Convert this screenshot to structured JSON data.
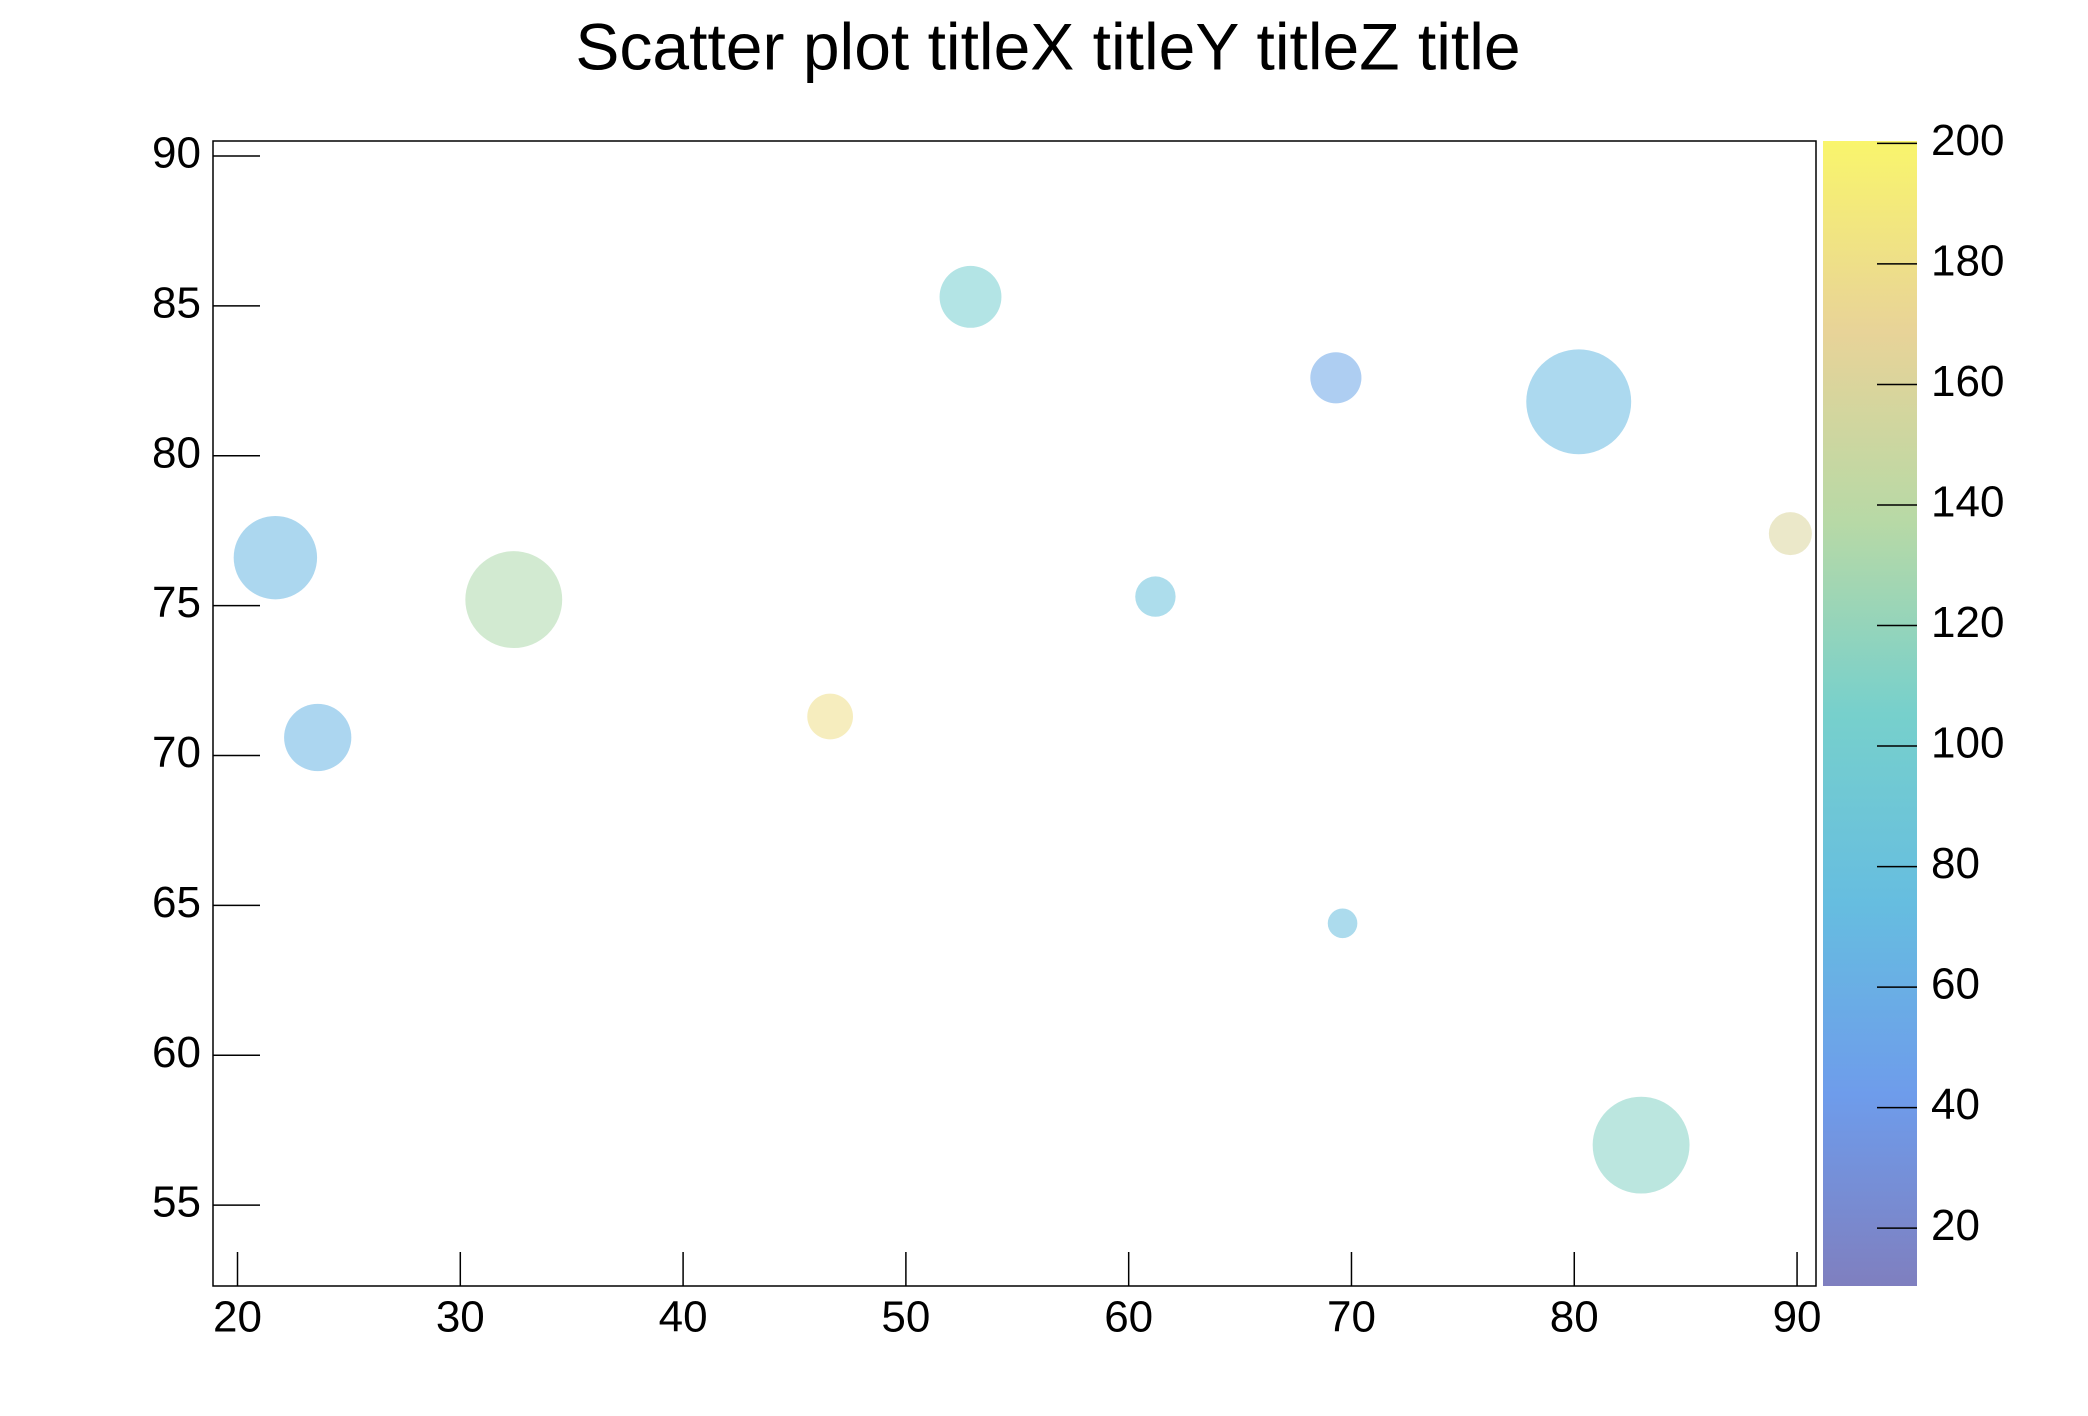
{
  "chart_data": {
    "type": "scatter",
    "title": "Scatter plot titleX titleY titleZ title",
    "x": [
      21.7,
      23.6,
      32.4,
      46.6,
      52.9,
      61.2,
      69.3,
      69.6,
      80.2,
      83.0,
      89.7
    ],
    "y": [
      76.6,
      70.6,
      75.2,
      71.3,
      85.3,
      75.3,
      82.6,
      64.4,
      81.8,
      57.0,
      77.4
    ],
    "z": [
      68,
      66,
      132,
      180,
      100,
      80,
      52,
      76,
      70,
      112,
      160
    ],
    "sizes": [
      31,
      25,
      36,
      17,
      23,
      15,
      19,
      11,
      39,
      36,
      16
    ],
    "xlim": [
      18.9,
      90.85
    ],
    "xticks": [
      20,
      30,
      40,
      50,
      60,
      70,
      80,
      90
    ],
    "ylim": [
      52.3,
      90.5
    ],
    "yticks": [
      55,
      60,
      65,
      70,
      75,
      80,
      85,
      90
    ],
    "zlim": [
      10.4,
      200.4
    ],
    "zticks": [
      20,
      40,
      60,
      80,
      100,
      120,
      140,
      160,
      180,
      200
    ],
    "palette": [
      "#7f7fbf",
      "#6e9ceb",
      "#66bde0",
      "#77d0cc",
      "#b7d9a6",
      "#e8d398",
      "#f9f56c"
    ]
  }
}
